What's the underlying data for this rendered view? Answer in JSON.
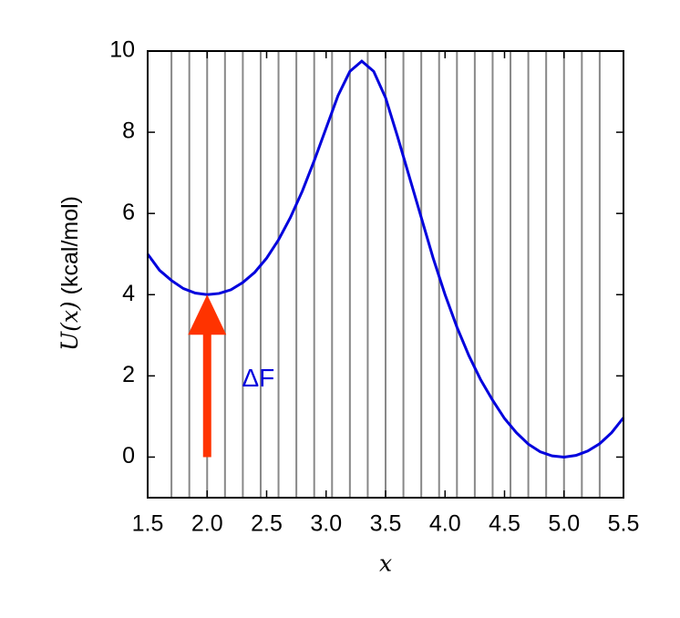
{
  "chart_data": {
    "type": "line",
    "xlabel": "x",
    "ylabel": {
      "math": "U(x)",
      "text": "(kcal/mol)"
    },
    "x": [
      1.5,
      1.6,
      1.7,
      1.8,
      1.9,
      2.0,
      2.1,
      2.2,
      2.3,
      2.4,
      2.5,
      2.6,
      2.7,
      2.8,
      2.9,
      3.0,
      3.1,
      3.2,
      3.3,
      3.4,
      3.5,
      3.6,
      3.7,
      3.8,
      3.9,
      4.0,
      4.1,
      4.2,
      4.3,
      4.4,
      4.5,
      4.6,
      4.7,
      4.8,
      4.9,
      5.0,
      5.1,
      5.2,
      5.3,
      5.4,
      5.5
    ],
    "series": [
      {
        "name": "U(x)",
        "color": "#0000dd",
        "values": [
          5.0,
          4.6,
          4.35,
          4.15,
          4.04,
          4.0,
          4.03,
          4.12,
          4.3,
          4.55,
          4.9,
          5.35,
          5.9,
          6.55,
          7.3,
          8.1,
          8.9,
          9.5,
          9.75,
          9.5,
          8.85,
          7.9,
          6.9,
          5.9,
          4.9,
          4.0,
          3.2,
          2.5,
          1.9,
          1.4,
          0.95,
          0.6,
          0.32,
          0.13,
          0.03,
          0.0,
          0.04,
          0.15,
          0.33,
          0.6,
          0.97
        ]
      }
    ],
    "vlines": [
      1.7,
      1.85,
      2.0,
      2.15,
      2.3,
      2.45,
      2.6,
      2.75,
      2.9,
      3.05,
      3.2,
      3.35,
      3.5,
      3.65,
      3.8,
      3.95,
      4.1,
      4.25,
      4.4,
      4.55,
      4.7,
      4.85,
      5.0,
      5.15,
      5.3
    ],
    "vline_color": "#888888",
    "arrow": {
      "x": 2.0,
      "y_start": 0,
      "y_end": 4,
      "color": "#ff3300"
    },
    "annotation": {
      "text": "ΔF",
      "x": 2.43,
      "y": 1.9,
      "color": "#0000dd"
    },
    "xlim": [
      1.5,
      5.5
    ],
    "ylim": [
      -1,
      10
    ],
    "xticks": [
      1.5,
      {
        "value": 2,
        "label": "2.0"
      },
      2.5,
      {
        "value": 3,
        "label": "3.0"
      },
      3.5,
      {
        "value": 4,
        "label": "4.0"
      },
      4.5,
      {
        "value": 5,
        "label": "5.0"
      },
      5.5
    ],
    "yticks": [
      0,
      2,
      4,
      6,
      8,
      10
    ]
  }
}
